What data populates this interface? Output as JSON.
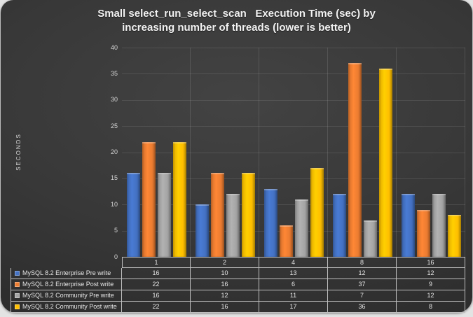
{
  "title": {
    "line1": "Small select_run_select_scan   Execution Time (sec) by",
    "line2": "increasing number of threads (lower is better)"
  },
  "chart_data": {
    "type": "bar",
    "title": "Small select_run_select_scan Execution Time (sec) by increasing number of threads (lower is better)",
    "xlabel": "",
    "ylabel": "SECONDS",
    "ylim": [
      0,
      40
    ],
    "ytick_step": 5,
    "yticks": [
      0,
      5,
      10,
      15,
      20,
      25,
      30,
      35,
      40
    ],
    "grid": true,
    "legend_position": "data-table-left",
    "categories": [
      "1",
      "2",
      "4",
      "8",
      "16"
    ],
    "series": [
      {
        "name": "MySQL 8.2 Enterprise Pre write",
        "color": "#4472C4",
        "values": [
          16,
          10,
          13,
          12,
          12
        ]
      },
      {
        "name": "MySQL 8.2 Enterprise Post write",
        "color": "#ED7D31",
        "values": [
          22,
          16,
          6,
          37,
          9
        ]
      },
      {
        "name": "MySQL 8.2 Community Pre write",
        "color": "#A5A5A5",
        "values": [
          16,
          12,
          11,
          7,
          12
        ]
      },
      {
        "name": "MySQL 8.2 Community Post write",
        "color": "#FFC000",
        "values": [
          22,
          16,
          17,
          36,
          8
        ]
      }
    ]
  },
  "colors": {
    "panel_center": "#434343",
    "panel_edge": "#272727",
    "page_background": "#e3e3e3",
    "grid_line": "rgba(255,255,255,0.10)",
    "table_border": "#bfbfbf",
    "text": "#e6e6e6"
  }
}
